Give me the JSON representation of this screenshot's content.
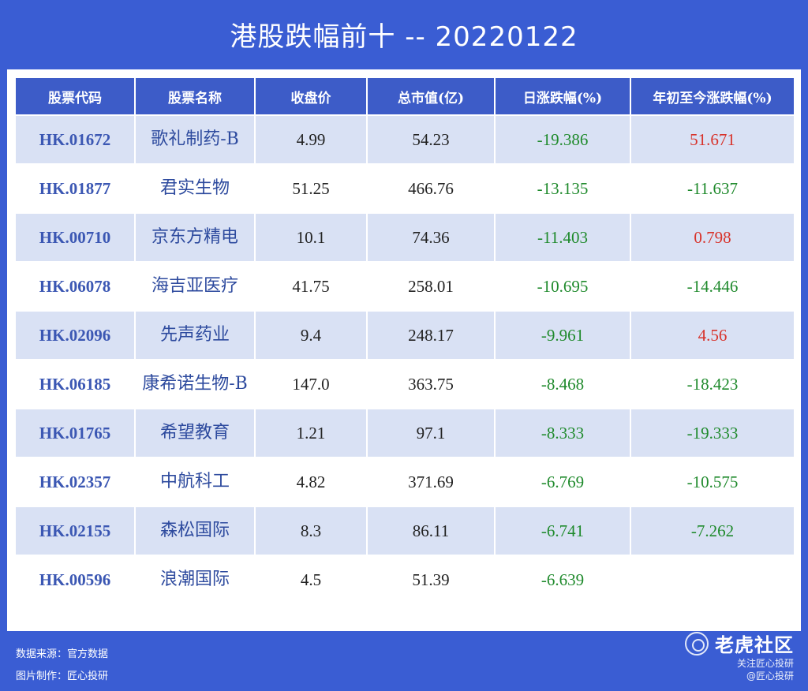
{
  "title": "港股跌幅前十 -- 20220122",
  "table": {
    "headers": [
      "股票代码",
      "股票名称",
      "收盘价",
      "总市值(亿)",
      "日涨跌幅(%)",
      "年初至今涨跌幅(%)"
    ],
    "rows": [
      {
        "code": "HK.01672",
        "name": "歌礼制药-B",
        "close": "4.99",
        "mcap": "54.23",
        "day": "-19.386",
        "ytd": "51.671"
      },
      {
        "code": "HK.01877",
        "name": "君实生物",
        "close": "51.25",
        "mcap": "466.76",
        "day": "-13.135",
        "ytd": "-11.637"
      },
      {
        "code": "HK.00710",
        "name": "京东方精电",
        "close": "10.1",
        "mcap": "74.36",
        "day": "-11.403",
        "ytd": "0.798"
      },
      {
        "code": "HK.06078",
        "name": "海吉亚医疗",
        "close": "41.75",
        "mcap": "258.01",
        "day": "-10.695",
        "ytd": "-14.446"
      },
      {
        "code": "HK.02096",
        "name": "先声药业",
        "close": "9.4",
        "mcap": "248.17",
        "day": "-9.961",
        "ytd": "4.56"
      },
      {
        "code": "HK.06185",
        "name": "康希诺生物-B",
        "close": "147.0",
        "mcap": "363.75",
        "day": "-8.468",
        "ytd": "-18.423"
      },
      {
        "code": "HK.01765",
        "name": "希望教育",
        "close": "1.21",
        "mcap": "97.1",
        "day": "-8.333",
        "ytd": "-19.333"
      },
      {
        "code": "HK.02357",
        "name": "中航科工",
        "close": "4.82",
        "mcap": "371.69",
        "day": "-6.769",
        "ytd": "-10.575"
      },
      {
        "code": "HK.02155",
        "name": "森松国际",
        "close": "8.3",
        "mcap": "86.11",
        "day": "-6.741",
        "ytd": "-7.262"
      },
      {
        "code": "HK.00596",
        "name": "浪潮国际",
        "close": "4.5",
        "mcap": "51.39",
        "day": "-6.639",
        "ytd": ""
      }
    ]
  },
  "footer": {
    "source": "数据来源：官方数据",
    "maker": "图片制作：匠心投研"
  },
  "brand": {
    "logo_icon": "tiger-logo-icon",
    "logo_text": "老虎社区",
    "line1": "关注匠心投研",
    "line2": "@匠心投研"
  },
  "colors": {
    "background": "#3a5dd3",
    "header": "#3d5cc8",
    "row_alt": "#d9e1f4",
    "negative": "#1f8a2c",
    "positive": "#d8322a"
  }
}
